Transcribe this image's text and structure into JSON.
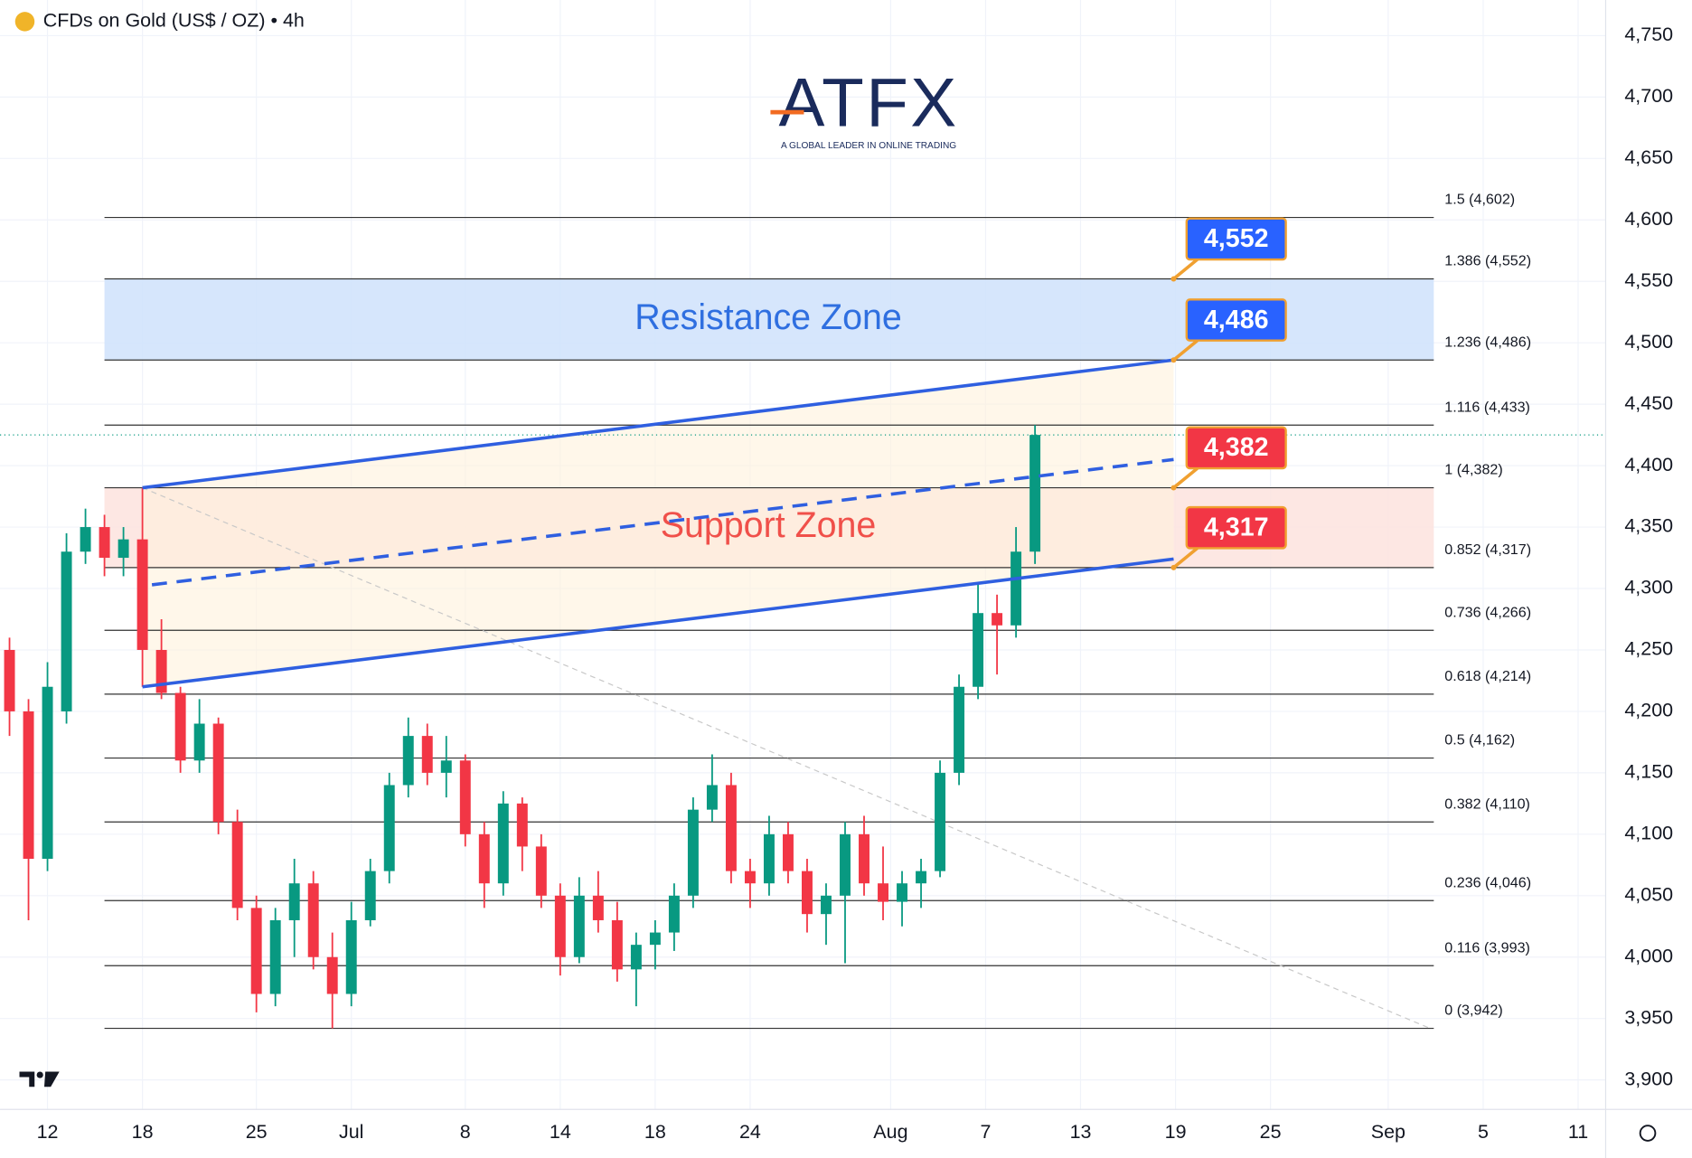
{
  "chart_data": {
    "type": "candlestick",
    "title": "CFDs on Gold (US$ / OZ) • 4h",
    "logo": {
      "name": "ATFX",
      "tagline": "A GLOBAL LEADER IN ONLINE TRADING"
    },
    "xlim": [
      -2.5,
      82.05
    ],
    "ylim": [
      3876,
      4779
    ],
    "xticks": [
      {
        "value": 0,
        "label": "12"
      },
      {
        "value": 5,
        "label": "18"
      },
      {
        "value": 11,
        "label": "25"
      },
      {
        "value": 16,
        "label": "Jul"
      },
      {
        "value": 22,
        "label": "8"
      },
      {
        "value": 27,
        "label": "14"
      },
      {
        "value": 32,
        "label": "18"
      },
      {
        "value": 37,
        "label": "24"
      },
      {
        "value": 44.4,
        "label": "Aug"
      },
      {
        "value": 49.4,
        "label": "7"
      },
      {
        "value": 54.4,
        "label": "13"
      },
      {
        "value": 59.4,
        "label": "19"
      },
      {
        "value": 64.4,
        "label": "25"
      },
      {
        "value": 70.6,
        "label": "Sep"
      },
      {
        "value": 75.6,
        "label": "5"
      },
      {
        "value": 80.6,
        "label": "11"
      }
    ],
    "yticks": [
      {
        "value": 3900,
        "label": "3,900"
      },
      {
        "value": 3950,
        "label": "3,950"
      },
      {
        "value": 4000,
        "label": "4,000"
      },
      {
        "value": 4050,
        "label": "4,050"
      },
      {
        "value": 4100,
        "label": "4,100"
      },
      {
        "value": 4150,
        "label": "4,150"
      },
      {
        "value": 4200,
        "label": "4,200"
      },
      {
        "value": 4250,
        "label": "4,250"
      },
      {
        "value": 4300,
        "label": "4,300"
      },
      {
        "value": 4350,
        "label": "4,350"
      },
      {
        "value": 4400,
        "label": "4,400"
      },
      {
        "value": 4450,
        "label": "4,450"
      },
      {
        "value": 4500,
        "label": "4,500"
      },
      {
        "value": 4550,
        "label": "4,550"
      },
      {
        "value": 4600,
        "label": "4,600"
      },
      {
        "value": 4650,
        "label": "4,650"
      },
      {
        "value": 4700,
        "label": "4,700"
      },
      {
        "value": 4750,
        "label": "4,750"
      }
    ],
    "grid": true,
    "up_color": "#089981",
    "down_color": "#f23645",
    "x": [
      -2,
      -1,
      0,
      1,
      2,
      3,
      4,
      5,
      6,
      7,
      8,
      9,
      10,
      11,
      12,
      13,
      14,
      15,
      16,
      17,
      18,
      19,
      20,
      21,
      22,
      23,
      24,
      25,
      26,
      27,
      28,
      29,
      30,
      31,
      32,
      33,
      34,
      35,
      36,
      37,
      38,
      39,
      40,
      41,
      42,
      43,
      44,
      45,
      46,
      47,
      48,
      49,
      50,
      51,
      52
    ],
    "open": [
      4250,
      4200,
      4080,
      4200,
      4330,
      4350,
      4325,
      4340,
      4250,
      4215,
      4160,
      4190,
      4110,
      4040,
      3970,
      4030,
      4060,
      4000,
      3970,
      4030,
      4070,
      4140,
      4180,
      4150,
      4160,
      4100,
      4060,
      4125,
      4090,
      4050,
      4000,
      4050,
      4030,
      3990,
      4010,
      4020,
      4050,
      4120,
      4140,
      4070,
      4060,
      4100,
      4070,
      4035,
      4050,
      4100,
      4060,
      4045,
      4060,
      4070,
      4150,
      4220,
      4280,
      4270,
      4330
    ],
    "high": [
      4260,
      4210,
      4240,
      4345,
      4365,
      4360,
      4350,
      4382,
      4275,
      4220,
      4210,
      4195,
      4120,
      4050,
      4040,
      4080,
      4070,
      4020,
      4045,
      4080,
      4150,
      4195,
      4190,
      4180,
      4165,
      4110,
      4135,
      4130,
      4100,
      4060,
      4065,
      4070,
      4045,
      4020,
      4030,
      4060,
      4130,
      4165,
      4150,
      4080,
      4115,
      4110,
      4080,
      4060,
      4110,
      4115,
      4090,
      4070,
      4080,
      4160,
      4230,
      4305,
      4295,
      4350,
      4433
    ],
    "low": [
      4180,
      4030,
      4070,
      4190,
      4320,
      4310,
      4310,
      4220,
      4210,
      4150,
      4150,
      4100,
      4030,
      3955,
      3960,
      4000,
      3990,
      3942,
      3960,
      4025,
      4060,
      4130,
      4140,
      4130,
      4090,
      4040,
      4050,
      4070,
      4040,
      3985,
      3995,
      4020,
      3980,
      3960,
      3990,
      4005,
      4040,
      4110,
      4060,
      4040,
      4050,
      4060,
      4020,
      4010,
      3995,
      4050,
      4030,
      4025,
      4040,
      4065,
      4140,
      4210,
      4230,
      4260,
      4320
    ],
    "close": [
      4200,
      4080,
      4220,
      4330,
      4350,
      4325,
      4340,
      4250,
      4215,
      4160,
      4190,
      4110,
      4040,
      3970,
      4030,
      4060,
      4000,
      3970,
      4030,
      4070,
      4140,
      4180,
      4150,
      4160,
      4100,
      4060,
      4125,
      4090,
      4050,
      4000,
      4050,
      4030,
      3990,
      4010,
      4020,
      4050,
      4120,
      4140,
      4070,
      4060,
      4100,
      4070,
      4035,
      4050,
      4100,
      4060,
      4045,
      4060,
      4070,
      4150,
      4220,
      4280,
      4270,
      4330,
      4425
    ],
    "fib_levels": [
      {
        "value": 4602,
        "label": "1.5 (4,602)"
      },
      {
        "value": 4552,
        "label": "1.386 (4,552)"
      },
      {
        "value": 4486,
        "label": "1.236 (4,486)"
      },
      {
        "value": 4433,
        "label": "1.116 (4,433)"
      },
      {
        "value": 4382,
        "label": "1 (4,382)"
      },
      {
        "value": 4317,
        "label": "0.852 (4,317)"
      },
      {
        "value": 4266,
        "label": "0.736 (4,266)"
      },
      {
        "value": 4214,
        "label": "0.618 (4,214)"
      },
      {
        "value": 4162,
        "label": "0.5 (4,162)"
      },
      {
        "value": 4110,
        "label": "0.382 (4,110)"
      },
      {
        "value": 4046,
        "label": "0.236 (4,046)"
      },
      {
        "value": 3993,
        "label": "0.116 (3,993)"
      },
      {
        "value": 3942,
        "label": "0 (3,942)"
      }
    ],
    "fib_x": [
      3,
      73
    ],
    "zones": [
      {
        "name": "Resistance Zone",
        "from": 4486,
        "to": 4552,
        "color": "#cfe2fb",
        "text_color": "#2f6fe0"
      },
      {
        "name": "Support Zone",
        "from": 4317,
        "to": 4382,
        "color": "#fde3de",
        "text_color": "#f0504a"
      }
    ],
    "channel": {
      "x": [
        5,
        59.3
      ],
      "upper": [
        4382,
        4486
      ],
      "lower": [
        4220,
        4324
      ],
      "middle_x": [
        5.5,
        59.3
      ],
      "middle": [
        4303,
        4405
      ],
      "color": "#2f5fe0",
      "fill": "#fff2dc"
    },
    "trendline": {
      "x": [
        5,
        72.8
      ],
      "y": [
        4382,
        3942
      ]
    },
    "callouts": [
      {
        "value": 4552,
        "label": "4,552",
        "color": "#2962ff"
      },
      {
        "value": 4486,
        "label": "4,486",
        "color": "#2962ff"
      },
      {
        "value": 4382,
        "label": "4,382",
        "color": "#f23645"
      },
      {
        "value": 4317,
        "label": "4,317",
        "color": "#f23645"
      }
    ],
    "callout_x": 59.3
  }
}
